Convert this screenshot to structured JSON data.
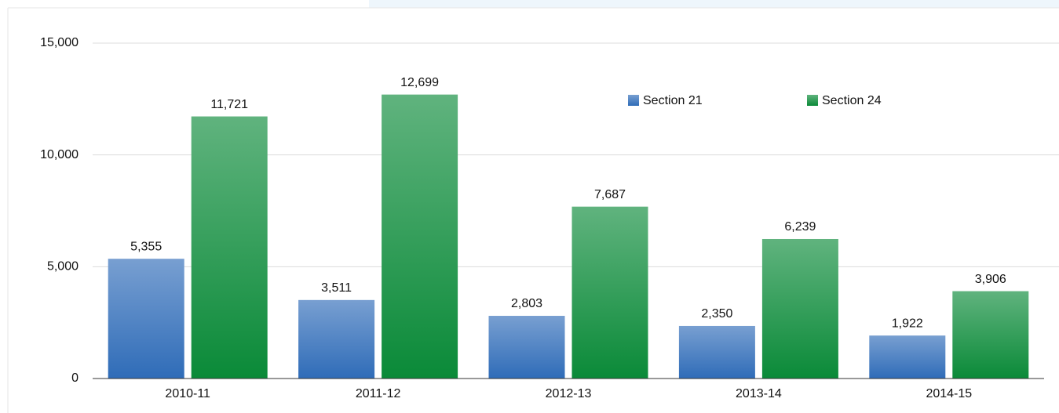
{
  "chart_data": {
    "type": "bar",
    "categories": [
      "2010-11",
      "2011-12",
      "2012-13",
      "2013-14",
      "2014-15"
    ],
    "series": [
      {
        "name": "Section 21",
        "color": "#2f6cb8",
        "values": [
          5355,
          3511,
          2803,
          2350,
          1922
        ],
        "value_labels": [
          "5,355",
          "3,511",
          "2,803",
          "2,350",
          "1,922"
        ]
      },
      {
        "name": "Section 24",
        "color": "#0a8a38",
        "values": [
          11721,
          12699,
          7687,
          6239,
          3906
        ],
        "value_labels": [
          "11,721",
          "12,699",
          "7,687",
          "6,239",
          "3,906"
        ]
      }
    ],
    "ylim": [
      0,
      15000
    ],
    "yticks": [
      0,
      {
        "value": 5000,
        "label": "5,000"
      },
      {
        "value": 10000,
        "label": "10,000"
      },
      {
        "value": 15000,
        "label": "15,000"
      }
    ],
    "grid": true
  }
}
